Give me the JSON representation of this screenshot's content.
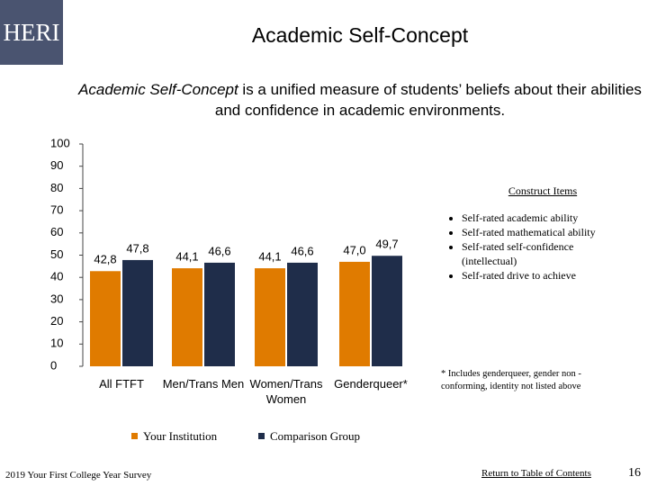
{
  "header": {
    "logo": "HERI",
    "title": "Academic Self-Concept",
    "subtitle_italic": "Academic Self-Concept",
    "subtitle_rest": " is a unified measure of students’ beliefs about their abilities and confidence in academic environments."
  },
  "chart_data": {
    "type": "bar",
    "categories": [
      "All FTFT",
      "Men/Trans Men",
      "Women/Trans Women",
      "Genderqueer*"
    ],
    "series": [
      {
        "name": "Your Institution",
        "color": "#e07b00",
        "values": [
          42.8,
          44.1,
          44.1,
          47.0
        ],
        "value_labels": [
          "42,8",
          "44,1",
          "44,1",
          "47,0"
        ]
      },
      {
        "name": "Comparison Group",
        "color": "#1f2d4a",
        "values": [
          47.8,
          46.6,
          46.6,
          49.7
        ],
        "value_labels": [
          "47,8",
          "46,6",
          "46,6",
          "49,7"
        ]
      }
    ],
    "ylim": [
      0,
      100
    ],
    "yticks": [
      0,
      10,
      20,
      30,
      40,
      50,
      60,
      70,
      80,
      90,
      100
    ],
    "grid": false
  },
  "construct_items": {
    "heading": "Construct Items",
    "items": [
      "Self-rated academic ability",
      "Self-rated mathematical ability",
      "Self-rated self-confidence (intellectual)",
      "Self-rated drive to achieve"
    ]
  },
  "note": "* Includes genderqueer, gender non - conforming, identity not listed above",
  "footer": {
    "source": "2019 Your First College Year Survey",
    "link": "Return to Table of Contents",
    "page": "16"
  }
}
